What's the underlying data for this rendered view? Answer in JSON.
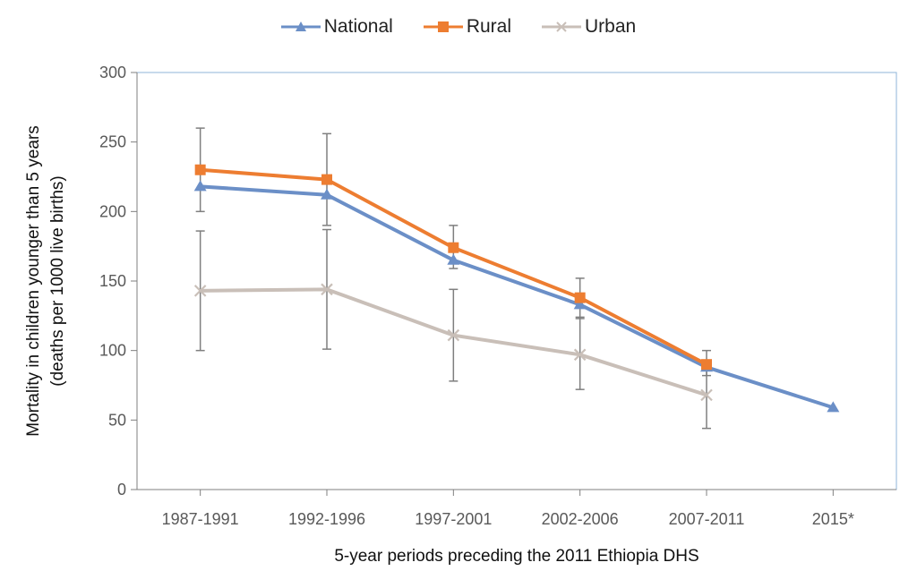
{
  "chart_data": {
    "type": "line",
    "categories": [
      "1987-1991",
      "1992-1996",
      "1997-2001",
      "2002-2006",
      "2007-2011",
      "2015*"
    ],
    "series": [
      {
        "name": "National",
        "color": "#6b8fc7",
        "marker": "triangle",
        "values": [
          218,
          212,
          165,
          133,
          88,
          59
        ],
        "error_low": [
          200,
          190,
          159,
          123,
          82,
          null
        ],
        "error_high": [
          260,
          256,
          190,
          152,
          100,
          null
        ]
      },
      {
        "name": "Rural",
        "color": "#ed7d31",
        "marker": "square",
        "values": [
          230,
          223,
          174,
          138,
          90,
          null
        ],
        "error_low": [
          null,
          null,
          null,
          null,
          null,
          null
        ],
        "error_high": [
          null,
          null,
          null,
          null,
          null,
          null
        ]
      },
      {
        "name": "Urban",
        "color": "#c9bfb8",
        "marker": "x",
        "values": [
          143,
          144,
          111,
          97,
          68,
          null
        ],
        "error_low": [
          100,
          101,
          78,
          72,
          44,
          null
        ],
        "error_high": [
          186,
          187,
          144,
          124,
          86,
          null
        ]
      }
    ],
    "ylim": [
      0,
      300
    ],
    "yticks": [
      0,
      50,
      100,
      150,
      200,
      250,
      300
    ],
    "ylabel_line1": "Mortality in children younger than 5 years",
    "ylabel_line2": "(deaths per 1000 live births)",
    "xlabel": "5-year periods preceding the 2011 Ethiopia DHS",
    "legend_position": "top",
    "grid": false,
    "errorbar_color": "#7f7f7f",
    "axis_color": "#7f7f7f",
    "frame_color": "#8fb4d9"
  }
}
